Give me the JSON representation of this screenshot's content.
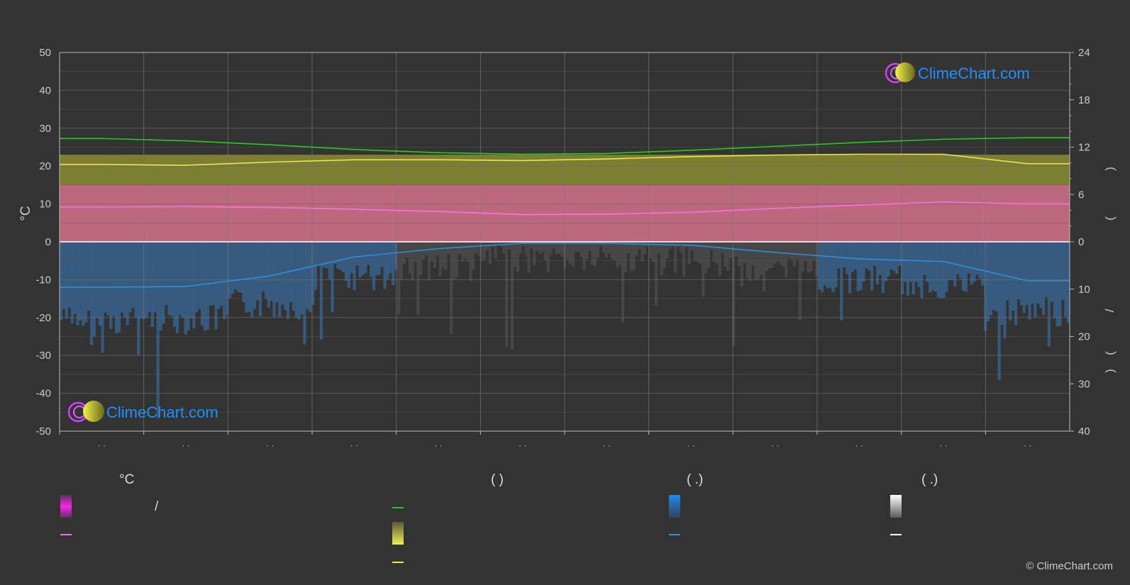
{
  "chart_data": {
    "type": "area",
    "left_axis": {
      "label": "°C",
      "ticks": [
        "50",
        "40",
        "30",
        "20",
        "10",
        "0",
        "-10",
        "-20",
        "-30",
        "-40",
        "-50"
      ],
      "range": [
        -50,
        50
      ]
    },
    "right_axis_upper": {
      "ticks": [
        "24",
        "18",
        "12",
        "6",
        "0"
      ],
      "range": [
        0,
        24
      ]
    },
    "right_axis_lower": {
      "ticks": [
        "10",
        "20",
        "30",
        "40"
      ],
      "range": [
        0,
        40
      ]
    },
    "right_axis_fragments": [
      ")",
      "(",
      "/",
      "(",
      ")"
    ],
    "x_tick_labels": [
      "· ·",
      "· ·",
      "· ·",
      "· ·",
      "· ·",
      "· ·",
      "· ·",
      "· ·",
      "· ·",
      "· ·",
      "· ·",
      "· ·"
    ],
    "months_count": 12,
    "series": [
      {
        "key": "daylight",
        "color": "#22cc22",
        "values": [
          13.1,
          12.8,
          12.3,
          11.7,
          11.3,
          11.1,
          11.2,
          11.6,
          12.1,
          12.6,
          13.0,
          13.2
        ]
      },
      {
        "key": "sunshine",
        "color": "#e8e84a",
        "values": [
          9.8,
          9.7,
          10.1,
          10.4,
          10.4,
          10.3,
          10.5,
          10.8,
          11.0,
          11.1,
          11.1,
          9.9
        ]
      },
      {
        "key": "mean_temp",
        "color": "#ff6ee0",
        "values": [
          9.2,
          9.3,
          9.1,
          8.6,
          8.0,
          7.2,
          7.3,
          7.8,
          8.8,
          9.7,
          10.5,
          10.0
        ]
      },
      {
        "key": "precipitation",
        "color": "#2f8ee0",
        "values": [
          -12.0,
          -11.8,
          -9.0,
          -4.0,
          -1.8,
          -0.4,
          -0.4,
          -0.9,
          -2.8,
          -4.5,
          -5.2,
          -10.3
        ]
      }
    ],
    "bands": {
      "temp_range": {
        "low": 0,
        "high": 15,
        "color": "#c8648c"
      },
      "sun_range": {
        "low": 0,
        "high": 23,
        "color": "#8c8c32"
      }
    }
  },
  "legend": {
    "col1": {
      "heading": "°C",
      "item1": "/",
      "item2": ""
    },
    "col2": {
      "heading": "(          )",
      "item1": "",
      "item2": "",
      "item3": ""
    },
    "col3": {
      "heading": "(    .)",
      "item1": "",
      "item2": ""
    },
    "col4": {
      "heading": "(    .)",
      "item1": "",
      "item2": ""
    }
  },
  "watermark": "ClimeChart.com",
  "copyright": "© ClimeChart.com",
  "colors": {
    "background": "#333333",
    "grid": "#5a5a5a",
    "daylight": "#22cc22",
    "sunshine": "#e8e84a",
    "temp": "#ff6ee0",
    "rain": "#2f8ee0",
    "snow": "#dddddd",
    "brand_blue": "#1e90ff"
  }
}
